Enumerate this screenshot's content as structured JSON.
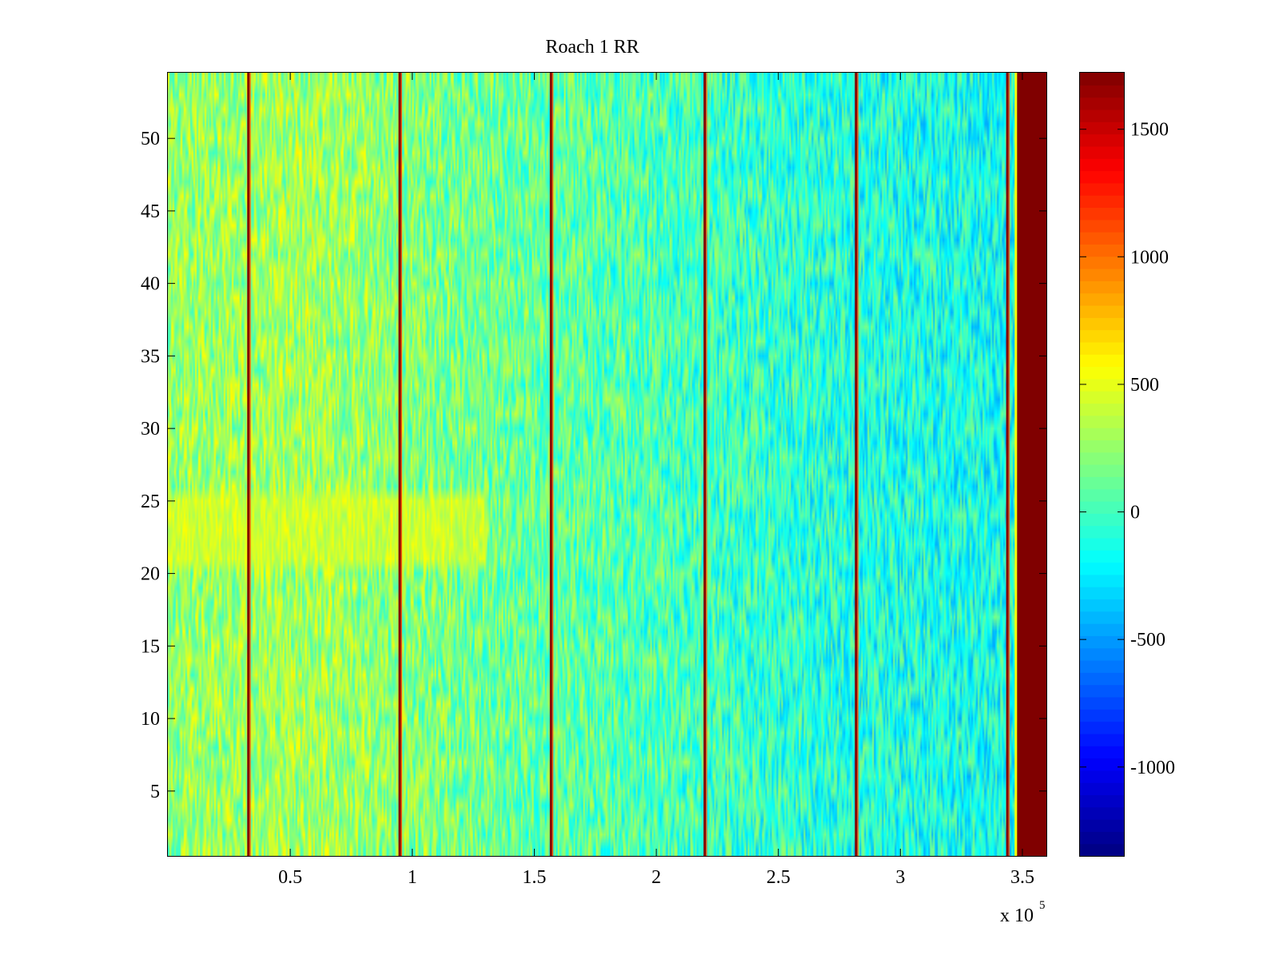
{
  "chart_data": {
    "type": "heatmap",
    "title": "Roach 1 RR",
    "xlabel": "",
    "ylabel": "",
    "x_multiplier_base": "x 10",
    "x_multiplier_exp": "5",
    "xlim": [
      0,
      3.6
    ],
    "ylim": [
      0.5,
      54.5
    ],
    "clim": [
      -1350,
      1720
    ],
    "colormap": "jet",
    "x_ticks": [
      0.5,
      1,
      1.5,
      2,
      2.5,
      3,
      3.5
    ],
    "x_tick_labels": [
      "0.5",
      "1",
      "1.5",
      "2",
      "2.5",
      "3",
      "3.5"
    ],
    "y_ticks": [
      5,
      10,
      15,
      20,
      25,
      30,
      35,
      40,
      45,
      50
    ],
    "y_tick_labels": [
      "5",
      "10",
      "15",
      "20",
      "25",
      "30",
      "35",
      "40",
      "45",
      "50"
    ],
    "colorbar_ticks": [
      -1000,
      -500,
      0,
      500,
      1000,
      1500
    ],
    "colorbar_tick_labels": [
      "-1000",
      "-500",
      "0",
      "500",
      "1000",
      "1500"
    ],
    "rows": 54,
    "background_mean_by_x": [
      [
        0.0,
        250
      ],
      [
        0.6,
        300
      ],
      [
        1.2,
        150
      ],
      [
        2.0,
        30
      ],
      [
        2.8,
        -100
      ],
      [
        3.47,
        -150
      ]
    ],
    "band_noise_amplitude": 320,
    "warm_patch": {
      "x": [
        0.0,
        1.3
      ],
      "y": [
        21,
        25
      ],
      "value": 420
    },
    "spike_lines_x": [
      0.33,
      0.95,
      1.57,
      2.2,
      2.82,
      3.44
    ],
    "spike_value": 1700,
    "saturated_region_x": [
      3.48,
      3.6
    ],
    "saturated_value": 1720
  }
}
